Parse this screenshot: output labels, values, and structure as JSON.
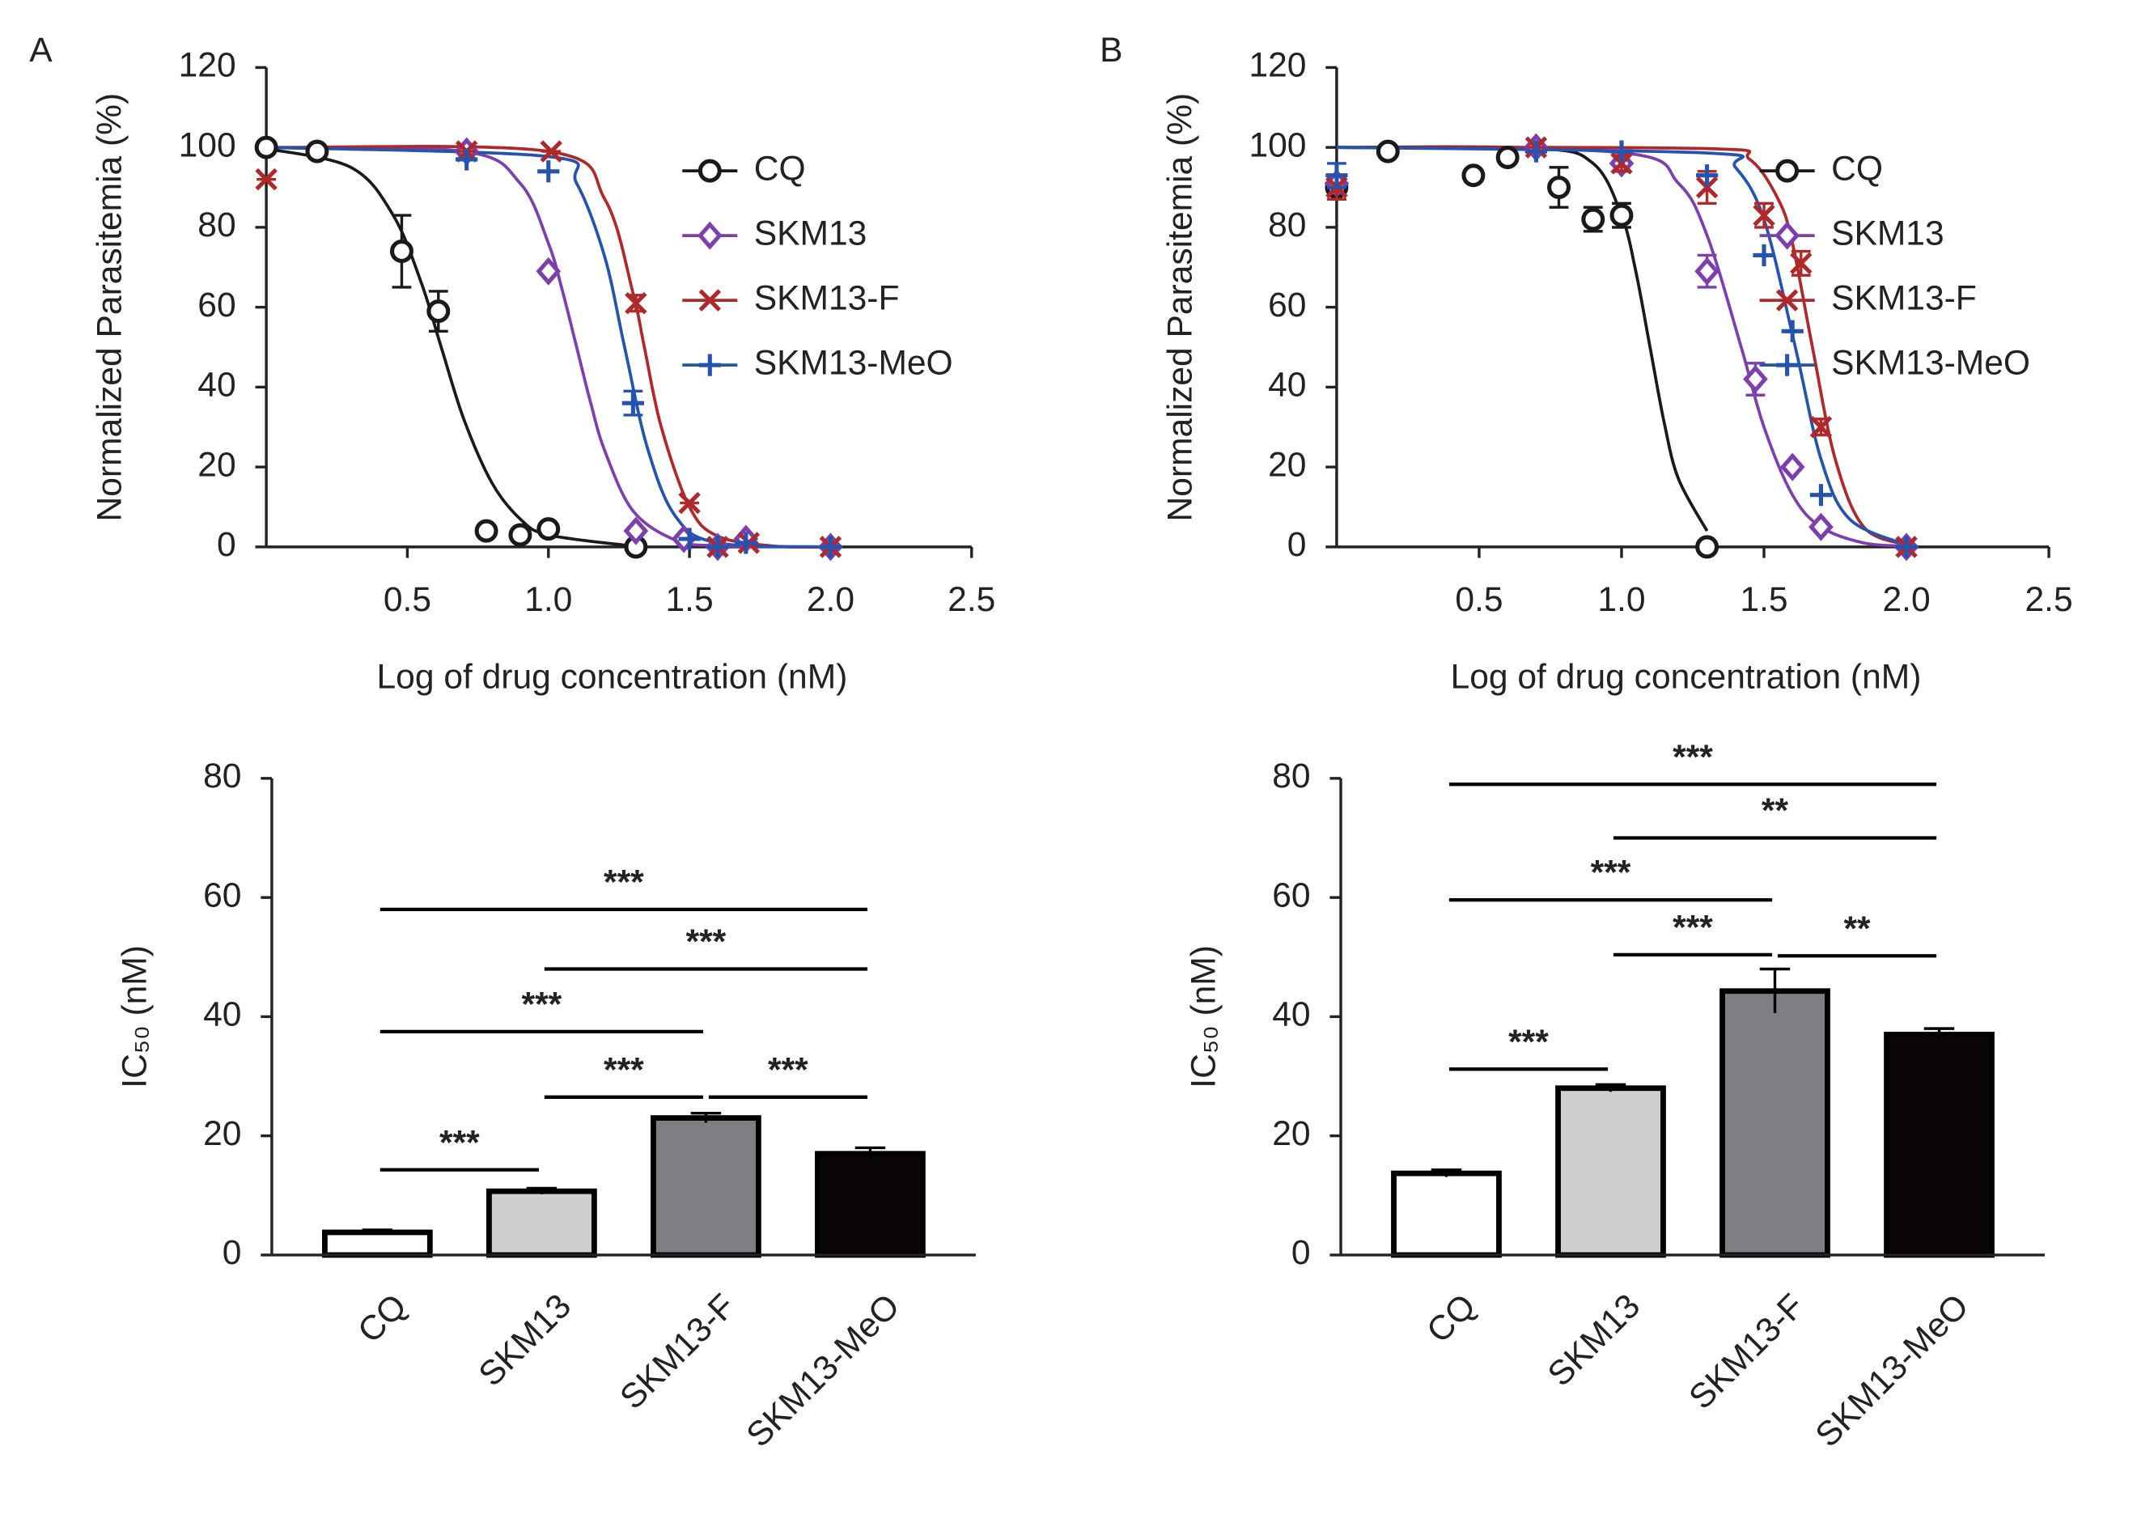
{
  "chart_data": [
    {
      "type": "scatter",
      "panel": "A",
      "x_label": "Log of drug concentration (nM)",
      "y_label": "Normalized Parasitemia (%)",
      "xlim": [
        0,
        2.5
      ],
      "xticks": [
        0.5,
        {
          "value": 1.0,
          "label": "1.0"
        },
        1.5,
        {
          "value": 2.0,
          "label": "2.0"
        },
        2.5
      ],
      "ylim": [
        0,
        120
      ],
      "yticks": [
        0,
        20,
        40,
        60,
        80,
        100,
        120
      ],
      "legend": "right",
      "series": [
        {
          "name": "CQ",
          "color": "#1a1a1a",
          "marker": "circle",
          "x": [
            0,
            0.18,
            0.48,
            0.61,
            0.78,
            0.9,
            1.0,
            1.31
          ],
          "values": [
            100,
            99,
            74,
            59,
            4,
            3,
            4.5,
            0
          ],
          "errors": [
            0,
            0,
            9,
            5,
            0,
            0,
            0,
            0
          ],
          "fit": {
            "x": [
              0,
              0.3,
              0.45,
              0.55,
              0.62,
              0.7,
              0.8,
              0.9,
              1.0,
              1.3
            ],
            "y": [
              99.7,
              95,
              83,
              66,
              50,
              32,
              16,
              7,
              3,
              0.2
            ]
          }
        },
        {
          "name": "SKM13",
          "color": "#7d3fae",
          "marker": "diamond",
          "x": [
            0.71,
            1.0,
            1.31,
            1.48,
            1.6,
            1.7,
            2.0
          ],
          "values": [
            99,
            69,
            4,
            2,
            0,
            2,
            0
          ],
          "errors": [
            0,
            0,
            0,
            0,
            0,
            0,
            0
          ],
          "fit": {
            "x": [
              0,
              0.7,
              0.9,
              1.0,
              1.05,
              1.1,
              1.15,
              1.2,
              1.3,
              1.45,
              1.6,
              2.0
            ],
            "y": [
              100,
              99,
              91,
              76,
              64,
              50,
              36,
              24,
              9,
              1.7,
              0.3,
              0
            ]
          }
        },
        {
          "name": "SKM13-F",
          "color": "#b0282a",
          "marker": "x",
          "x": [
            0,
            0.71,
            1.01,
            1.31,
            1.5,
            1.6,
            1.71,
            2.0
          ],
          "values": [
            92,
            99,
            99,
            61,
            11,
            0,
            1,
            0
          ],
          "errors": [
            0,
            0,
            0,
            2,
            0,
            0,
            0,
            0
          ],
          "fit": {
            "x": [
              0,
              1.0,
              1.2,
              1.3,
              1.34,
              1.4,
              1.5,
              1.6,
              1.8,
              2.0
            ],
            "y": [
              100,
              99,
              87,
              63.5,
              50,
              30,
              10,
              2.7,
              0.2,
              0
            ]
          }
        },
        {
          "name": "SKM13-MeO",
          "color": "#2553b0",
          "marker": "plus",
          "x": [
            0.71,
            1.0,
            1.3,
            1.5,
            1.6,
            1.7,
            2.0
          ],
          "values": [
            97,
            94,
            36,
            2,
            0,
            1,
            0
          ],
          "errors": [
            0,
            0,
            3,
            0,
            0,
            0,
            0
          ],
          "fit": {
            "x": [
              0,
              1.0,
              1.1,
              1.2,
              1.27,
              1.35,
              1.45,
              1.6,
              2.0
            ],
            "y": [
              100,
              97.7,
              91,
              72.5,
              50,
              25,
              7.7,
              1,
              0
            ]
          }
        }
      ]
    },
    {
      "type": "bar",
      "y_label": "IC₅₀ (nM)",
      "categories": [
        "CQ",
        "SKM13",
        "SKM13-F",
        "SKM13-MeO"
      ],
      "colors": [
        "#ffffff",
        "#cfcfd0",
        "#7e7f82",
        "#0b0707"
      ],
      "values": [
        3.8,
        10.7,
        23,
        17
      ],
      "errors": [
        0.4,
        0.5,
        0.8,
        1
      ],
      "ylim": [
        0,
        80
      ],
      "yticks": [
        0,
        20,
        40,
        60,
        80
      ],
      "comparisons": [
        {
          "groups": [
            "CQ",
            "SKM13-MeO"
          ],
          "level": 58,
          "label": "***"
        },
        {
          "groups": [
            "SKM13",
            "SKM13-MeO"
          ],
          "level": 48,
          "label": "***"
        },
        {
          "groups": [
            "CQ",
            "SKM13-F"
          ],
          "level": 37.5,
          "label": "***"
        },
        {
          "groups": [
            "SKM13",
            "SKM13-F"
          ],
          "level": 26.5,
          "label": "***"
        },
        {
          "groups": [
            "SKM13-F",
            "SKM13-MeO"
          ],
          "level": 26.5,
          "label": "***"
        },
        {
          "groups": [
            "CQ",
            "SKM13"
          ],
          "level": 14.3,
          "label": "***"
        }
      ]
    },
    {
      "type": "scatter",
      "panel": "B",
      "x_label": "Log of drug concentration (nM)",
      "y_label": "Normalized Parasitemia (%)",
      "xlim": [
        0,
        2.5
      ],
      "xticks": [
        0.5,
        {
          "value": 1.0,
          "label": "1.0"
        },
        1.5,
        {
          "value": 2.0,
          "label": "2.0"
        },
        2.5
      ],
      "ylim": [
        0,
        120
      ],
      "yticks": [
        0,
        20,
        40,
        60,
        80,
        100,
        120
      ],
      "legend": "right",
      "series": [
        {
          "name": "CQ",
          "color": "#1a1a1a",
          "marker": "circle",
          "x": [
            0,
            0.18,
            0.48,
            0.6,
            0.78,
            0.9,
            1.0,
            1.3
          ],
          "values": [
            90,
            99,
            93,
            97.5,
            90,
            82,
            83,
            0
          ],
          "errors": [
            3,
            0,
            0,
            0,
            5,
            3,
            3,
            0
          ],
          "fit": {
            "x": [
              0,
              0.7,
              0.9,
              1.0,
              1.05,
              1.1,
              1.15,
              1.2,
              1.3
            ],
            "y": [
              100,
              99.8,
              96,
              83,
              69,
              50,
              31,
              17,
              4
            ]
          }
        },
        {
          "name": "SKM13",
          "color": "#7d3fae",
          "marker": "diamond",
          "x": [
            0,
            0.7,
            1.0,
            1.3,
            1.47,
            1.6,
            1.7,
            2.0
          ],
          "values": [
            91,
            100,
            96,
            69,
            42,
            20,
            5,
            0
          ],
          "errors": [
            0,
            0,
            0,
            4,
            4,
            0,
            0,
            0
          ],
          "fit": {
            "x": [
              0,
              1.0,
              1.2,
              1.3,
              1.42,
              1.5,
              1.6,
              1.7,
              1.85,
              2.0
            ],
            "y": [
              100,
              98.7,
              91,
              78,
              50,
              30,
              13,
              5,
              1,
              0.2
            ]
          }
        },
        {
          "name": "SKM13-F",
          "color": "#b0282a",
          "marker": "x",
          "x": [
            0,
            0.7,
            1.0,
            1.3,
            1.5,
            1.63,
            1.7,
            2.0
          ],
          "values": [
            90,
            100,
            96,
            90,
            83,
            71,
            30,
            0
          ],
          "errors": [
            3,
            0,
            2,
            4,
            3,
            3,
            2,
            0
          ],
          "fit": {
            "x": [
              0,
              1.3,
              1.45,
              1.55,
              1.6,
              1.67,
              1.75,
              1.85,
              2.0
            ],
            "y": [
              100,
              99.7,
              97,
              87,
              76,
              50,
              22,
              5,
              0.5
            ]
          }
        },
        {
          "name": "SKM13-MeO",
          "color": "#2553b0",
          "marker": "plus",
          "x": [
            0,
            0.7,
            1.0,
            1.3,
            1.5,
            1.6,
            1.7,
            2.0
          ],
          "values": [
            93,
            99,
            99,
            93,
            73,
            54,
            13,
            0
          ],
          "errors": [
            3,
            0,
            0,
            0,
            0,
            0,
            0,
            0
          ],
          "fit": {
            "x": [
              0,
              1.3,
              1.4,
              1.5,
              1.61,
              1.7,
              1.8,
              2.0
            ],
            "y": [
              100,
              98.6,
              95,
              82,
              50,
              22,
              7,
              0.5
            ]
          }
        }
      ]
    },
    {
      "type": "bar",
      "y_label": "IC₅₀ (nM)",
      "categories": [
        "CQ",
        "SKM13",
        "SKM13-F",
        "SKM13-MeO"
      ],
      "colors": [
        "#ffffff",
        "#cfcfd0",
        "#7e7f82",
        "#0b0707"
      ],
      "values": [
        13.7,
        28,
        44.3,
        37
      ],
      "errors": [
        0.6,
        0.6,
        3.7,
        1
      ],
      "ylim": [
        0,
        80
      ],
      "yticks": [
        0,
        20,
        40,
        60,
        80
      ],
      "comparisons": [
        {
          "groups": [
            "CQ",
            "SKM13-MeO"
          ],
          "level": 79,
          "label": "***"
        },
        {
          "groups": [
            "SKM13",
            "SKM13-MeO"
          ],
          "level": 70,
          "label": "**"
        },
        {
          "groups": [
            "CQ",
            "SKM13-F"
          ],
          "level": 59.6,
          "label": "***"
        },
        {
          "groups": [
            "SKM13",
            "SKM13-F"
          ],
          "level": 50.4,
          "label": "***"
        },
        {
          "groups": [
            "SKM13-F",
            "SKM13-MeO"
          ],
          "level": 50.2,
          "label": "**"
        },
        {
          "groups": [
            "CQ",
            "SKM13"
          ],
          "level": 31.2,
          "label": "***"
        }
      ]
    }
  ]
}
